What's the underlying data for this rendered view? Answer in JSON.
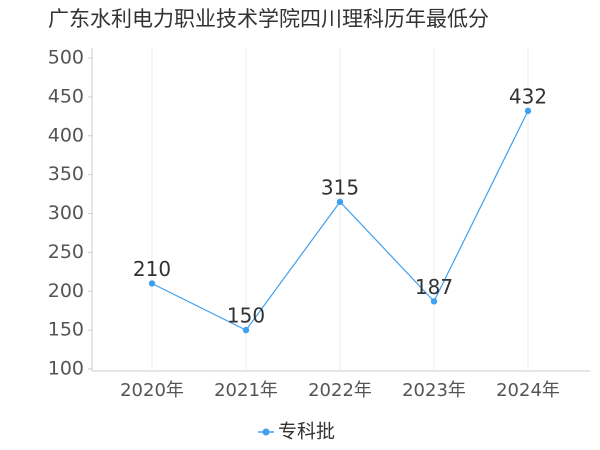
{
  "chart_data": {
    "type": "line",
    "title": "广东水利电力职业技术学院四川理科历年最低分",
    "categories": [
      "2020年",
      "2021年",
      "2022年",
      "2023年",
      "2024年"
    ],
    "series": [
      {
        "name": "专科批",
        "color": "#3fa0f0",
        "values": [
          210,
          150,
          315,
          187,
          432
        ]
      }
    ],
    "ylim": [
      100,
      500
    ],
    "yticks": [
      100,
      150,
      200,
      250,
      300,
      350,
      400,
      450,
      500
    ],
    "grid": true
  }
}
